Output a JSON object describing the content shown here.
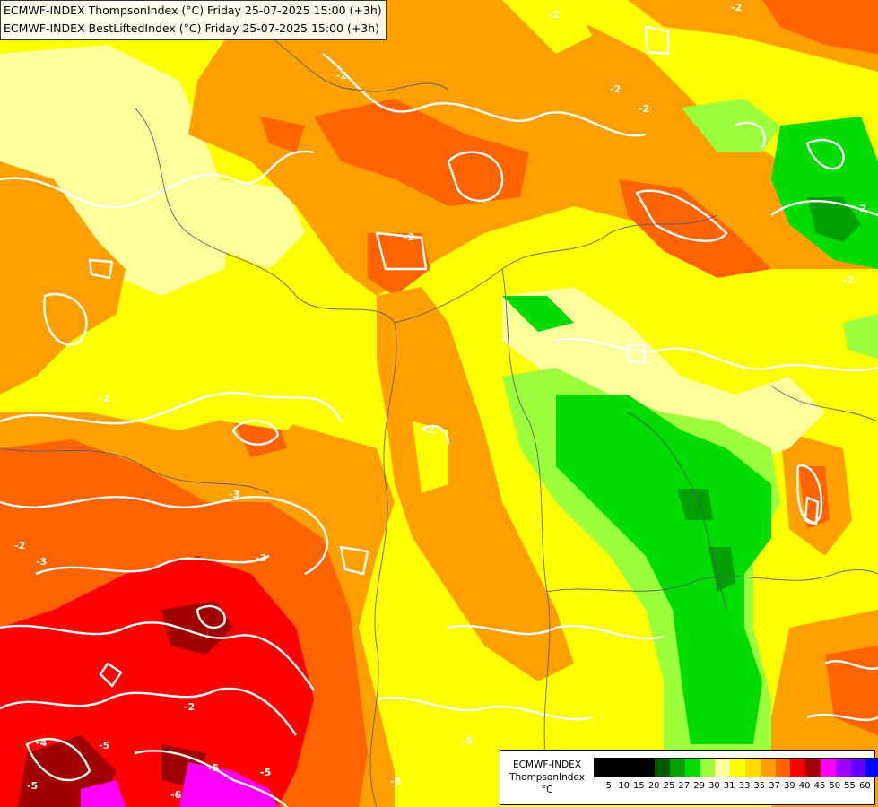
{
  "titles": {
    "line1": "ECMWF-INDEX ThompsonIndex (°C) Friday 25-07-2025 15:00 (+3h)",
    "line2": "ECMWF-INDEX BestLiftedIndex (°C) Friday 25-07-2025 15:00 (+3h)"
  },
  "legend": {
    "model": "ECMWF-INDEX",
    "parameter": "ThompsonIndex",
    "unit": "°C",
    "ticks": [
      "5",
      "10",
      "15",
      "20",
      "25",
      "27",
      "29",
      "30",
      "31",
      "33",
      "35",
      "37",
      "39",
      "40",
      "45",
      "50",
      "55",
      "60"
    ],
    "colors": [
      "#000000",
      "#000000",
      "#000000",
      "#000000",
      "#005a00",
      "#00a000",
      "#00dc00",
      "#9cff3c",
      "#ffff9c",
      "#ffff00",
      "#ffdc00",
      "#ffa000",
      "#ff6400",
      "#ff0000",
      "#a00000",
      "#ff00ff",
      "#a000ff",
      "#6400ff",
      "#0000ff"
    ]
  },
  "contour_labels": [
    "-2",
    "-2",
    "-2",
    "-2",
    "-2",
    "-3",
    "-2",
    "-2",
    "-2",
    "-3",
    "-2",
    "-2",
    "-2",
    "-3",
    "-2",
    "-5",
    "-5",
    "-5",
    "-6",
    "-5",
    "-4",
    "-5",
    "-5",
    "-2",
    "-5"
  ],
  "colors": {
    "yellow": "#ffff00",
    "light_yellow": "#ffff9c",
    "gold": "#ffdc00",
    "orange": "#ffa000",
    "dark_orange": "#ff6400",
    "red": "#ff0000",
    "dark_red": "#a00000",
    "magenta": "#ff00ff",
    "green": "#00dc00",
    "dark_green": "#00a000",
    "light_green": "#9cff3c",
    "contour": "#ffffff",
    "border": "#505870"
  }
}
